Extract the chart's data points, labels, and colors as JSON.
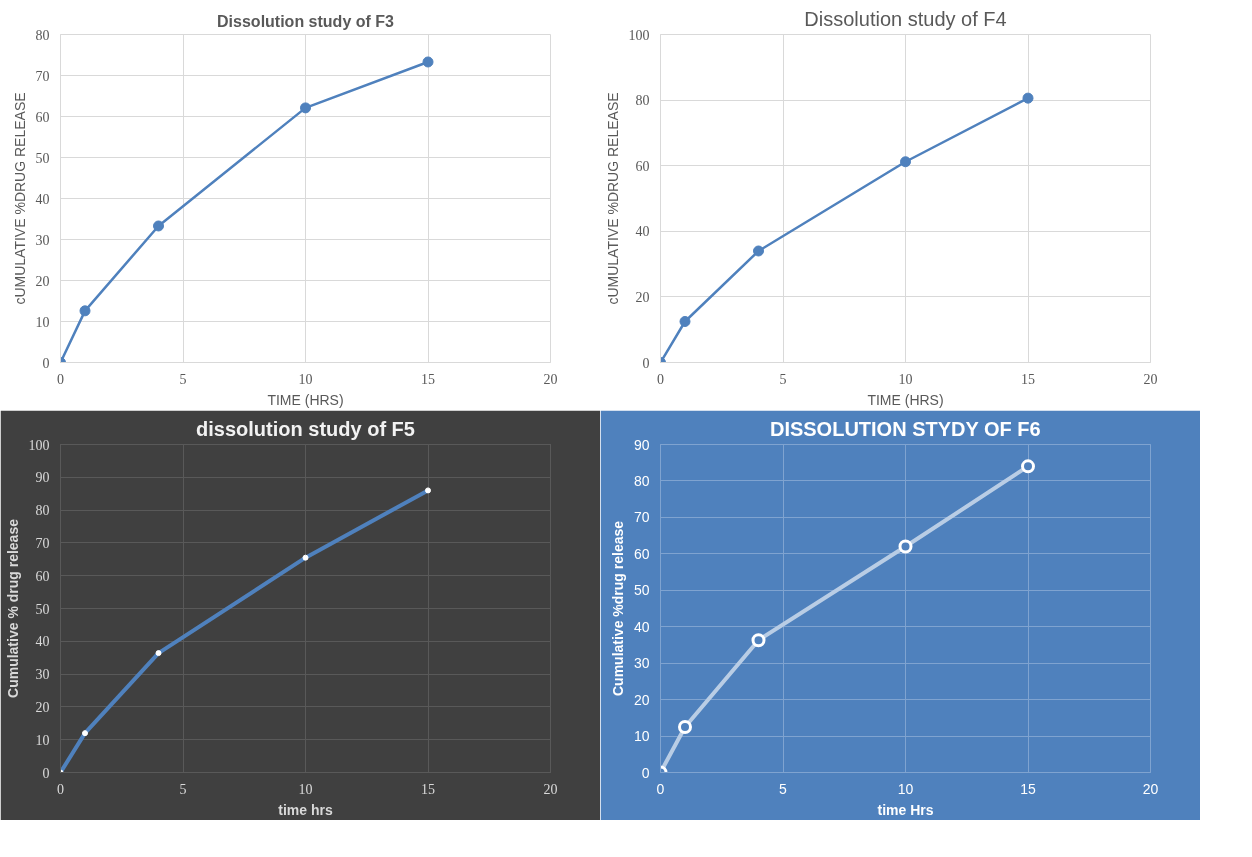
{
  "chart_data": [
    {
      "type": "line",
      "title": "Dissolution study of F3",
      "xlabel": "TIME (HRS)",
      "ylabel": "cUMULATIVE %DRUG RELEASE",
      "x": [
        0,
        1,
        4,
        10,
        15
      ],
      "series": [
        {
          "color": "#4f81bd",
          "values": [
            0,
            12.6,
            33.3,
            62.1,
            73.3
          ]
        }
      ],
      "xlim": [
        0,
        20
      ],
      "xticks": [
        0,
        5,
        10,
        15,
        20
      ],
      "ylim": [
        0,
        80
      ],
      "yticks": [
        0,
        10,
        20,
        30,
        40,
        50,
        60,
        70,
        80
      ],
      "grid": true,
      "marker": "circle",
      "line_style": "solid"
    },
    {
      "type": "line",
      "title": "Dissolution study of F4",
      "xlabel": "TIME (HRS)",
      "ylabel": "cUMULATIVE %DRUG RELEASE",
      "x": [
        0,
        1,
        4,
        10,
        15
      ],
      "series": [
        {
          "color": "#4f81bd",
          "values": [
            0,
            12.5,
            34,
            61.2,
            80.6
          ]
        }
      ],
      "xlim": [
        0,
        20
      ],
      "xticks": [
        0,
        5,
        10,
        15,
        20
      ],
      "ylim": [
        0,
        100
      ],
      "yticks": [
        0,
        20,
        40,
        60,
        80,
        100
      ],
      "grid": true,
      "marker": "circle",
      "line_style": "solid"
    },
    {
      "type": "line",
      "title": "dissolution study of F5",
      "xlabel": "time hrs",
      "ylabel": "Cumulative % drug release",
      "x": [
        0,
        1,
        4,
        10,
        15
      ],
      "series": [
        {
          "color": "#4f81bd",
          "values": [
            0,
            12,
            36.4,
            65.5,
            86
          ]
        }
      ],
      "xlim": [
        0,
        20
      ],
      "xticks": [
        0,
        5,
        10,
        15,
        20
      ],
      "ylim": [
        0,
        100
      ],
      "yticks": [
        0,
        10,
        20,
        30,
        40,
        50,
        60,
        70,
        80,
        90,
        100
      ],
      "grid": true,
      "marker": "circle",
      "line_style": "solid"
    },
    {
      "type": "line",
      "title": "DISSOLUTION STYDY OF F6",
      "xlabel": "time Hrs",
      "ylabel": "Cumulative %drug release",
      "x": [
        0,
        1,
        4,
        10,
        15
      ],
      "series": [
        {
          "color": "#b9cde5",
          "values": [
            0,
            12.5,
            36.3,
            62,
            84
          ]
        }
      ],
      "xlim": [
        0,
        20
      ],
      "xticks": [
        0,
        5,
        10,
        15,
        20
      ],
      "ylim": [
        0,
        90
      ],
      "yticks": [
        0,
        10,
        20,
        30,
        40,
        50,
        60,
        70,
        80,
        90
      ],
      "grid": true,
      "marker": "circle",
      "line_style": "solid"
    }
  ]
}
